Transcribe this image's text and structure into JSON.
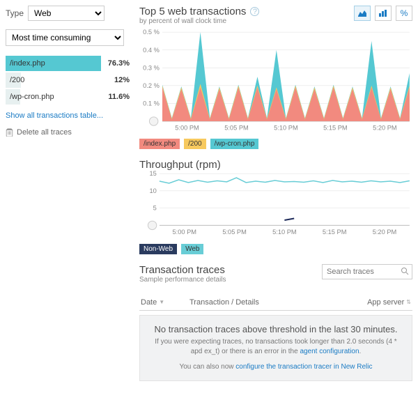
{
  "sidebar": {
    "type_label": "Type",
    "type_value": "Web",
    "sort_value": "Most time consuming",
    "transactions": [
      {
        "label": "/index.php",
        "pct": "76.3%",
        "bar": 76.3
      },
      {
        "label": "/200",
        "pct": "12%",
        "bar": 12
      },
      {
        "label": "/wp-cron.php",
        "pct": "11.6%",
        "bar": 11.6
      }
    ],
    "show_all": "Show all transactions table...",
    "delete": "Delete all traces"
  },
  "top_chart": {
    "title": "Top 5 web transactions",
    "subtitle": "by percent of wall clock time",
    "btn_pct": "%",
    "y_ticks": [
      "0.5 %",
      "0.4 %",
      "0.3 %",
      "0.2 %",
      "0.1 %"
    ],
    "x_ticks": [
      "5:00 PM",
      "5:05 PM",
      "5:10 PM",
      "5:15 PM",
      "5:20 PM"
    ],
    "colors": {
      "index": "#f28a7f",
      "c200": "#f7c95e",
      "wp": "#55c8d2"
    },
    "legend": [
      {
        "label": "/index.php",
        "color": "#f28a7f"
      },
      {
        "label": "/200",
        "color": "#f7c95e"
      },
      {
        "label": "/wp-cron.php",
        "color": "#55c8d2"
      }
    ],
    "index_series": [
      0.19,
      0.01,
      0.18,
      0.01,
      0.19,
      0.01,
      0.18,
      0.01,
      0.19,
      0.01,
      0.19,
      0.01,
      0.18,
      0.01,
      0.19,
      0.01,
      0.18,
      0.01,
      0.19,
      0.01,
      0.18,
      0.01,
      0.19,
      0.01,
      0.18,
      0.01,
      0.19
    ],
    "c200_series": [
      0.2,
      0.015,
      0.19,
      0.015,
      0.21,
      0.015,
      0.19,
      0.015,
      0.2,
      0.015,
      0.2,
      0.015,
      0.19,
      0.015,
      0.2,
      0.015,
      0.19,
      0.015,
      0.2,
      0.015,
      0.19,
      0.015,
      0.2,
      0.015,
      0.19,
      0.015,
      0.2
    ],
    "wp_series": [
      0.205,
      0.018,
      0.195,
      0.018,
      0.5,
      0.018,
      0.195,
      0.018,
      0.205,
      0.018,
      0.25,
      0.018,
      0.4,
      0.018,
      0.205,
      0.018,
      0.195,
      0.018,
      0.205,
      0.018,
      0.195,
      0.018,
      0.45,
      0.018,
      0.195,
      0.018,
      0.27
    ],
    "ymax": 0.5
  },
  "throughput": {
    "title": "Throughput (rpm)",
    "y_ticks": [
      "15",
      "10",
      "5"
    ],
    "x_ticks": [
      "5:00 PM",
      "5:05 PM",
      "5:10 PM",
      "5:15 PM",
      "5:20 PM"
    ],
    "web_color": "#68cdd6",
    "nonweb_color": "#1e2a5a",
    "web_series": [
      12.8,
      12.2,
      13.2,
      12.4,
      13.0,
      12.5,
      12.9,
      12.6,
      13.8,
      12.4,
      12.8,
      12.5,
      13.0,
      12.6,
      12.7,
      12.5,
      12.9,
      12.4,
      13.0,
      12.6,
      12.8,
      12.5,
      12.9,
      12.6,
      12.8,
      12.4,
      12.9
    ],
    "nonweb_series": [
      0,
      0,
      0,
      0,
      0,
      0,
      0,
      0,
      0,
      0,
      0,
      0,
      0,
      1.5,
      2.0,
      0,
      0,
      0,
      0,
      0,
      0,
      0,
      0,
      0,
      0,
      0,
      0
    ],
    "ymax": 15,
    "legend": [
      {
        "label": "Non-Web",
        "dark": true
      },
      {
        "label": "Web",
        "color": "#68cdd6"
      }
    ]
  },
  "traces": {
    "title": "Transaction traces",
    "subtitle": "Sample performance details",
    "search_placeholder": "Search traces",
    "th_date": "Date",
    "th_tx": "Transaction / Details",
    "th_app": "App server",
    "empty_title": "No transaction traces above threshold in the last 30 minutes.",
    "empty_sub1": "If you were expecting traces, no transactions took longer than 2.0 seconds (4 * apd ex_t) or there is an error in the ",
    "empty_link1": "agent configuration",
    "empty_sub2": "You can also now ",
    "empty_link2": "configure the transaction tracer in New Relic"
  }
}
